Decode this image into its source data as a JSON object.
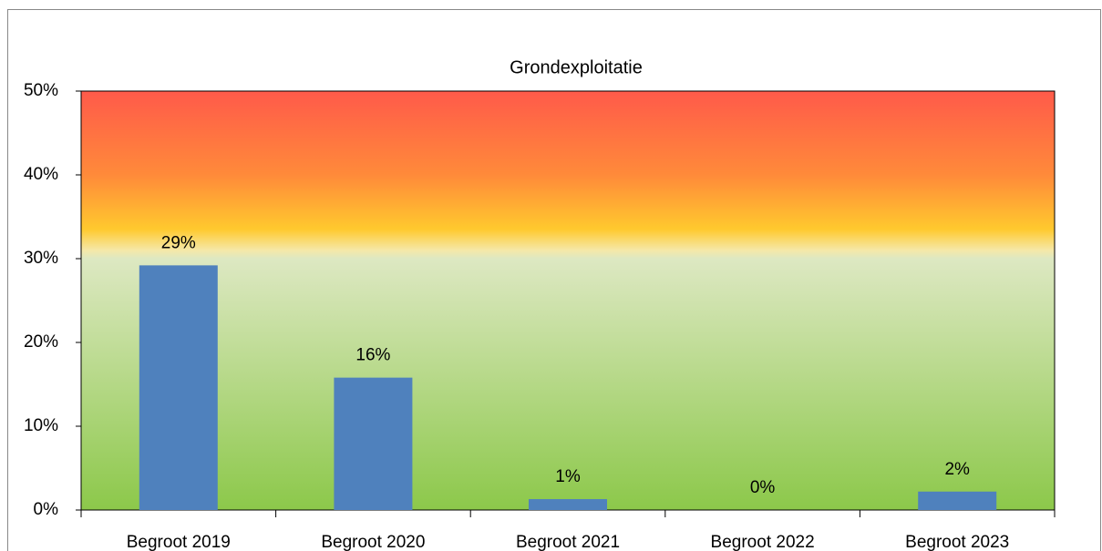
{
  "chart_data": {
    "type": "bar",
    "title": "Grondexploitatie",
    "categories": [
      "Begroot 2019",
      "Begroot 2020",
      "Begroot 2021",
      "Begroot 2022",
      "Begroot 2023"
    ],
    "values": [
      29.2,
      15.8,
      1.3,
      0,
      2.2
    ],
    "value_labels": [
      "29%",
      "16%",
      "1%",
      "0%",
      "2%"
    ],
    "color": "#4f81bd",
    "ylim": [
      0,
      50
    ],
    "yticks": [
      {
        "value": 0,
        "label": "0%"
      },
      {
        "value": 10,
        "label": "10%"
      },
      {
        "value": 20,
        "label": "20%"
      },
      {
        "value": 30,
        "label": "30%"
      },
      {
        "value": 40,
        "label": "40%"
      },
      {
        "value": 50,
        "label": "50%"
      }
    ]
  }
}
